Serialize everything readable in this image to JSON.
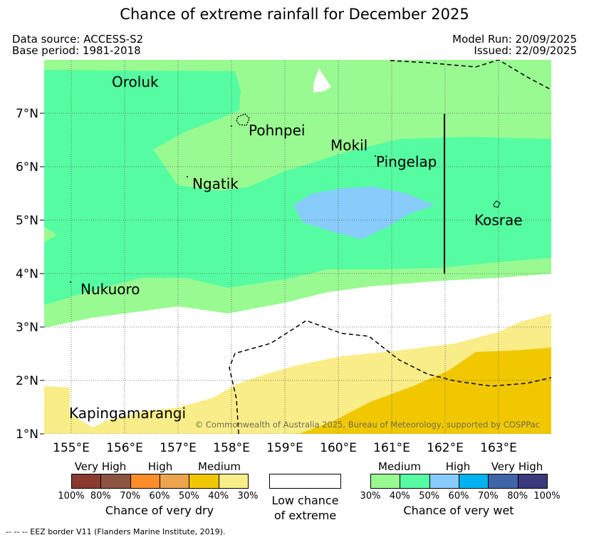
{
  "title": "Chance of extreme rainfall for December 2025",
  "header": {
    "data_source": "Data source: ACCESS-S2",
    "base_period": "Base period: 1981-2018",
    "model_run": "Model Run: 20/09/2025",
    "issued": "Issued: 22/09/2025"
  },
  "map": {
    "longitude_labels": [
      "155°E",
      "156°E",
      "157°E",
      "158°E",
      "159°E",
      "160°E",
      "161°E",
      "162°E",
      "163°E"
    ],
    "latitude_labels": [
      "1°N",
      "2°N",
      "3°N",
      "4°N",
      "5°N",
      "6°N",
      "7°N"
    ],
    "places": {
      "oroluk": "Oroluk",
      "pohnpei": "Pohnpei",
      "mokil": "Mokil",
      "pingelap": "Pingelap",
      "ngatik": "Ngatik",
      "kosrae": "Kosrae",
      "nukuoro": "Nukuoro",
      "kapingamarangi": "Kapingamarangi"
    },
    "copyright": "© Commonwealth of Australia 2025, Bureau of Meteorology, supported by COSPPac"
  },
  "legend": {
    "dry": {
      "categories": [
        "Very High",
        "High",
        "Medium"
      ],
      "ticks": [
        "100%",
        "80%",
        "70%",
        "60%",
        "50%",
        "40%",
        "30%"
      ],
      "colors": [
        "#8b3a2f",
        "#8c5542",
        "#ff8c2a",
        "#eda44d",
        "#f1c800",
        "#f8ed88"
      ],
      "title": "Chance of very dry"
    },
    "low": {
      "line1": "Low chance",
      "line2": "of extreme"
    },
    "wet": {
      "categories": [
        "Medium",
        "High",
        "Very High"
      ],
      "ticks": [
        "30%",
        "40%",
        "50%",
        "60%",
        "70%",
        "80%",
        "100%"
      ],
      "colors": [
        "#9afa92",
        "#56fca2",
        "#87ccfb",
        "#00b2f0",
        "#3d65a7",
        "#3b3a7c"
      ],
      "title": "Chance of very wet"
    }
  },
  "footnote": "--  --  -- EEZ border V11 (Flanders Marine Institute, 2019)."
}
